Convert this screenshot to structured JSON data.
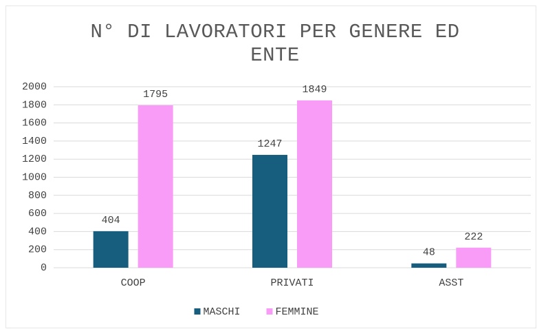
{
  "chart_data": {
    "type": "bar",
    "title": "N° DI LAVORATORI PER GENERE ED ENTE",
    "categories": [
      "COOP",
      "PRIVATI",
      "ASST"
    ],
    "series": [
      {
        "name": "MASCHI",
        "color": "#175e7e",
        "values": [
          404,
          1247,
          48
        ]
      },
      {
        "name": "FEMMINE",
        "color": "#f99cf7",
        "values": [
          1795,
          1849,
          222
        ]
      }
    ],
    "ylim": [
      0,
      2000
    ],
    "yticks": [
      0,
      200,
      400,
      600,
      800,
      1000,
      1200,
      1400,
      1600,
      1800,
      2000
    ],
    "grid": true,
    "legend": "bottom"
  }
}
